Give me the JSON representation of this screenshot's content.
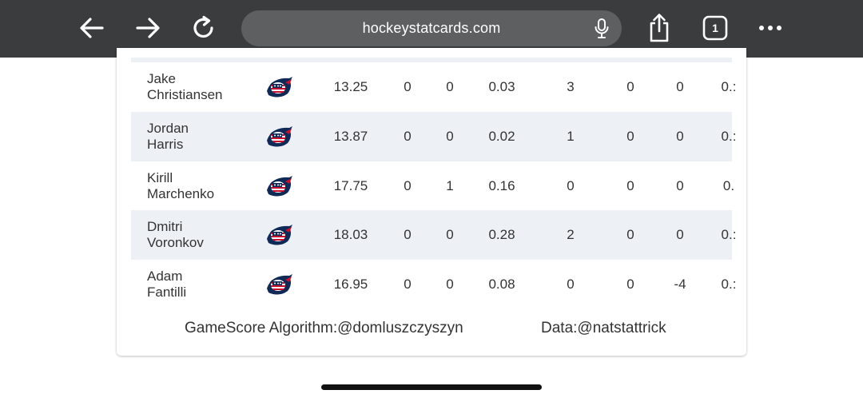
{
  "browser": {
    "url": "hockeystatcards.com",
    "tab_count": "1",
    "icons": [
      "back-arrow-icon",
      "forward-arrow-icon",
      "reload-icon",
      "microphone-icon",
      "share-icon",
      "tabs-icon",
      "more-icon"
    ]
  },
  "table": {
    "rows": [
      {
        "first": "Jake",
        "last": "Christiansen",
        "logo": "columbus-blue-jackets-logo",
        "c1": "13.25",
        "c2": "0",
        "c3": "0",
        "c4": "0.03",
        "c5": "3",
        "c6": "0",
        "c7": "0",
        "c8": "0.:"
      },
      {
        "first": "Jordan",
        "last": "Harris",
        "logo": "columbus-blue-jackets-logo",
        "c1": "13.87",
        "c2": "0",
        "c3": "0",
        "c4": "0.02",
        "c5": "1",
        "c6": "0",
        "c7": "0",
        "c8": "0.:"
      },
      {
        "first": "Kirill",
        "last": "Marchenko",
        "logo": "columbus-blue-jackets-logo",
        "c1": "17.75",
        "c2": "0",
        "c3": "1",
        "c4": "0.16",
        "c5": "0",
        "c6": "0",
        "c7": "0",
        "c8": "0."
      },
      {
        "first": "Dmitri",
        "last": "Voronkov",
        "logo": "columbus-blue-jackets-logo",
        "c1": "18.03",
        "c2": "0",
        "c3": "0",
        "c4": "0.28",
        "c5": "2",
        "c6": "0",
        "c7": "0",
        "c8": "0.:"
      },
      {
        "first": "Adam",
        "last": "Fantilli",
        "logo": "columbus-blue-jackets-logo",
        "c1": "16.95",
        "c2": "0",
        "c3": "0",
        "c4": "0.08",
        "c5": "0",
        "c6": "0",
        "c7": "-4",
        "c8": "0.:"
      }
    ]
  },
  "footer": {
    "credit_algorithm": "GameScore Algorithm:@domluszczyszyn",
    "credit_data": "Data:@natstattrick"
  },
  "colors": {
    "toolbar_bg": "#3a3c3e",
    "url_bar_bg": "#5d5f61",
    "row_alt_bg": "#edf1f6",
    "logo_navy": "#0f2a57",
    "logo_red": "#c8102e"
  }
}
